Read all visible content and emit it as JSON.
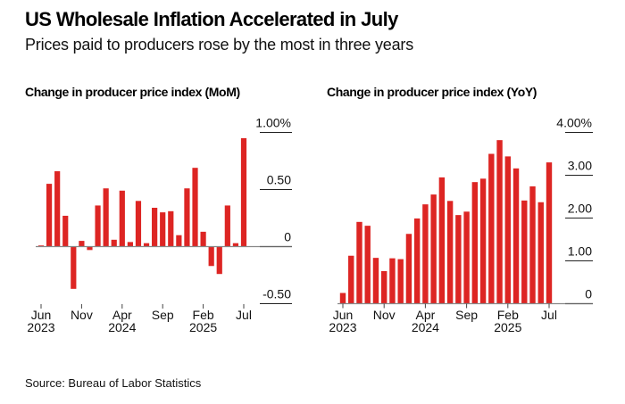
{
  "header": {
    "title": "US Wholesale Inflation Accelerated in July",
    "subtitle": "Prices paid to producers rose by the most in three years"
  },
  "footer": {
    "source": "Source: Bureau of Labor Statistics"
  },
  "colors": {
    "bar": "#dd2523",
    "axis": "#888888",
    "gridline": "#222222"
  },
  "chart_data": [
    {
      "type": "bar",
      "title": "Change in producer price index (MoM)",
      "xlabel": "",
      "ylabel": "",
      "unit": "%",
      "ylim": [
        -0.5,
        1.0
      ],
      "yticks": [
        {
          "value": 1.0,
          "label": "1.00%"
        },
        {
          "value": 0.5,
          "label": "0.50"
        },
        {
          "value": 0,
          "label": "0"
        },
        {
          "value": -0.5,
          "label": "-0.50"
        }
      ],
      "xticks": [
        {
          "index": 0,
          "label": "Jun",
          "year": "2023"
        },
        {
          "index": 5,
          "label": "Nov",
          "year": ""
        },
        {
          "index": 10,
          "label": "Apr",
          "year": "2024"
        },
        {
          "index": 15,
          "label": "Sep",
          "year": ""
        },
        {
          "index": 20,
          "label": "Feb",
          "year": "2025"
        },
        {
          "index": 25,
          "label": "Jul",
          "year": ""
        }
      ],
      "categories": [
        "Jun 2023",
        "Jul 2023",
        "Aug 2023",
        "Sep 2023",
        "Oct 2023",
        "Nov 2023",
        "Dec 2023",
        "Jan 2024",
        "Feb 2024",
        "Mar 2024",
        "Apr 2024",
        "May 2024",
        "Jun 2024",
        "Jul 2024",
        "Aug 2024",
        "Sep 2024",
        "Oct 2024",
        "Nov 2024",
        "Dec 2024",
        "Jan 2025",
        "Feb 2025",
        "Mar 2025",
        "Apr 2025",
        "May 2025",
        "Jun 2025",
        "Jul 2025"
      ],
      "values": [
        0.01,
        0.55,
        0.66,
        0.27,
        -0.37,
        0.05,
        -0.03,
        0.36,
        0.51,
        0.06,
        0.49,
        0.04,
        0.4,
        0.03,
        0.34,
        0.3,
        0.31,
        0.1,
        0.51,
        0.69,
        0.13,
        -0.17,
        -0.24,
        0.36,
        0.03,
        0.95
      ],
      "grid": false,
      "legend": "none"
    },
    {
      "type": "bar",
      "title": "Change in producer price index (YoY)",
      "xlabel": "",
      "ylabel": "",
      "unit": "%",
      "ylim": [
        0,
        4.0
      ],
      "yticks": [
        {
          "value": 4.0,
          "label": "4.00%"
        },
        {
          "value": 3.0,
          "label": "3.00"
        },
        {
          "value": 2.0,
          "label": "2.00"
        },
        {
          "value": 1.0,
          "label": "1.00"
        },
        {
          "value": 0,
          "label": "0"
        }
      ],
      "xticks": [
        {
          "index": 0,
          "label": "Jun",
          "year": "2023"
        },
        {
          "index": 5,
          "label": "Nov",
          "year": ""
        },
        {
          "index": 10,
          "label": "Apr",
          "year": "2024"
        },
        {
          "index": 15,
          "label": "Sep",
          "year": ""
        },
        {
          "index": 20,
          "label": "Feb",
          "year": "2025"
        },
        {
          "index": 25,
          "label": "Jul",
          "year": ""
        }
      ],
      "categories": [
        "Jun 2023",
        "Jul 2023",
        "Aug 2023",
        "Sep 2023",
        "Oct 2023",
        "Nov 2023",
        "Dec 2023",
        "Jan 2024",
        "Feb 2024",
        "Mar 2024",
        "Apr 2024",
        "May 2024",
        "Jun 2024",
        "Jul 2024",
        "Aug 2024",
        "Sep 2024",
        "Oct 2024",
        "Nov 2024",
        "Dec 2024",
        "Jan 2025",
        "Feb 2025",
        "Mar 2025",
        "Apr 2025",
        "May 2025",
        "Jun 2025",
        "Jul 2025"
      ],
      "values": [
        0.25,
        1.12,
        1.91,
        1.82,
        1.07,
        0.76,
        1.06,
        1.04,
        1.63,
        1.99,
        2.32,
        2.55,
        2.95,
        2.4,
        2.07,
        2.15,
        2.84,
        2.92,
        3.5,
        3.82,
        3.44,
        3.16,
        2.41,
        2.74,
        2.37,
        3.3
      ],
      "grid": false,
      "legend": "none"
    }
  ]
}
